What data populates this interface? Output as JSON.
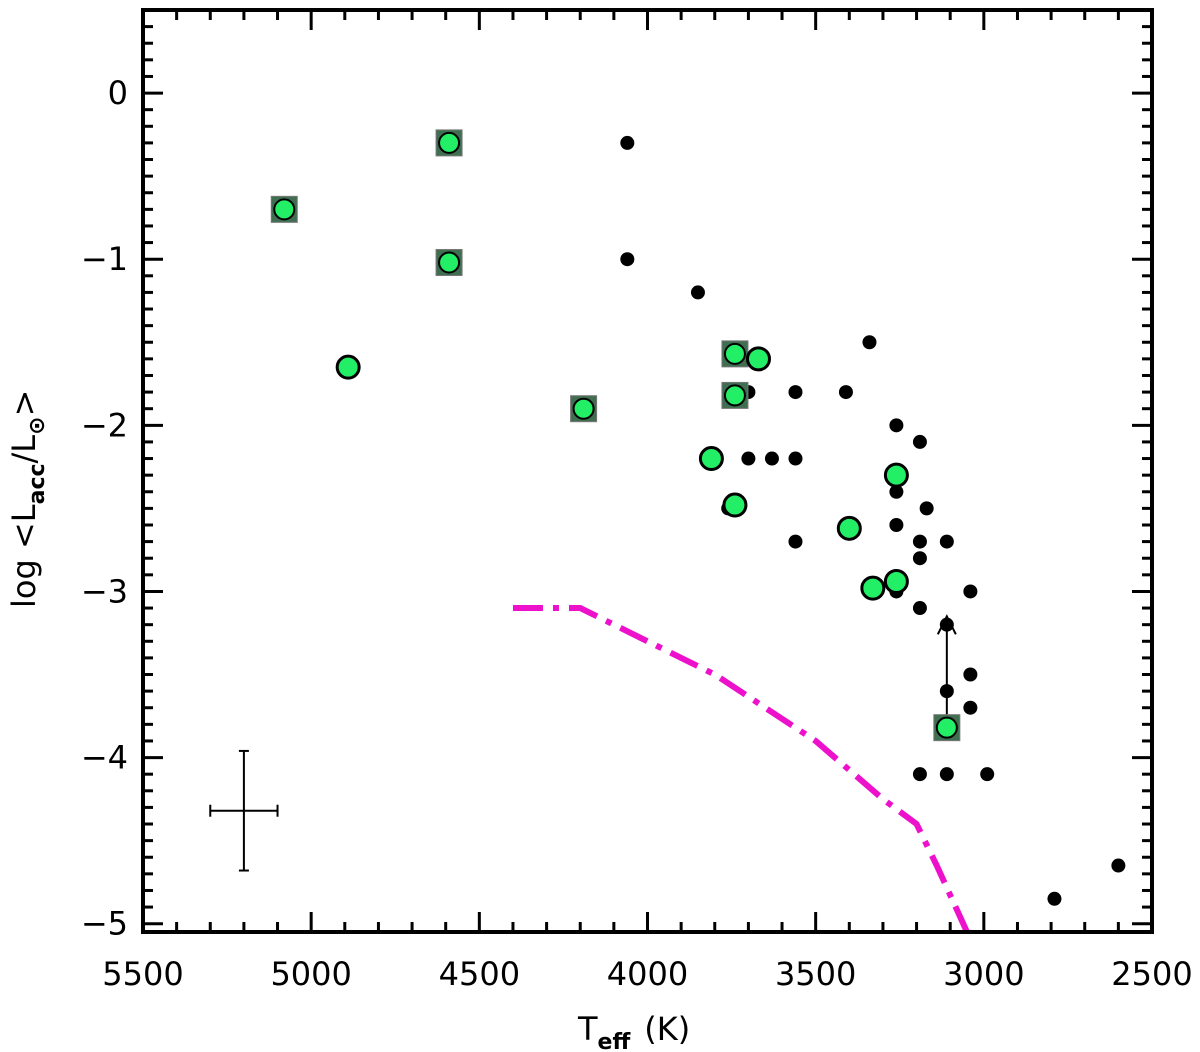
{
  "chart_data": {
    "type": "scatter",
    "title": "",
    "xlabel": "T",
    "xlabel_sub": "eff",
    "xlabel_unit": "(K)",
    "ylabel": "log <L",
    "ylabel_sub_acc": "acc",
    "ylabel_mid": "/L",
    "ylabel_sub_sun": "⊙",
    "ylabel_end": ">",
    "xlim": [
      5500,
      2500
    ],
    "ylim": [
      -5.05,
      0.5
    ],
    "x_reversed": true,
    "x_ticks": [
      5500,
      5000,
      4500,
      4000,
      3500,
      3000,
      2500
    ],
    "y_ticks": [
      0,
      -1,
      -2,
      -3,
      -4,
      -5
    ],
    "y_tick_labels": [
      "0",
      "−1",
      "−2",
      "−3",
      "−4",
      "−5"
    ],
    "grid": false,
    "colors": {
      "green": "#22ee66",
      "magenta": "#ee11cc",
      "square": "#3f6f50",
      "black": "#000000"
    },
    "series": [
      {
        "marker": "small-black-dot",
        "points": [
          [
            4060,
            -0.3
          ],
          [
            4060,
            -1.0
          ],
          [
            3850,
            -1.2
          ],
          [
            3340,
            -1.5
          ],
          [
            3700,
            -1.8
          ],
          [
            3560,
            -1.8
          ],
          [
            3410,
            -1.8
          ],
          [
            3260,
            -2.0
          ],
          [
            3190,
            -2.1
          ],
          [
            3700,
            -2.2
          ],
          [
            3630,
            -2.2
          ],
          [
            3560,
            -2.2
          ],
          [
            3260,
            -2.4
          ],
          [
            3170,
            -2.5
          ],
          [
            3760,
            -2.5
          ],
          [
            3260,
            -2.6
          ],
          [
            3560,
            -2.7
          ],
          [
            3190,
            -2.7
          ],
          [
            3110,
            -2.7
          ],
          [
            3190,
            -2.8
          ],
          [
            3260,
            -3.0
          ],
          [
            3040,
            -3.0
          ],
          [
            3190,
            -3.1
          ],
          [
            3110,
            -3.2
          ],
          [
            3040,
            -3.5
          ],
          [
            3110,
            -3.6
          ],
          [
            3040,
            -3.7
          ],
          [
            3190,
            -4.1
          ],
          [
            3110,
            -4.1
          ],
          [
            2990,
            -4.1
          ],
          [
            2600,
            -4.65
          ],
          [
            2790,
            -4.85
          ]
        ]
      },
      {
        "marker": "green-circle",
        "points": [
          [
            4890,
            -1.65
          ],
          [
            3670,
            -1.6
          ],
          [
            3810,
            -2.2
          ],
          [
            3740,
            -2.48
          ],
          [
            3400,
            -2.62
          ],
          [
            3330,
            -2.98
          ],
          [
            3260,
            -2.94
          ],
          [
            3260,
            -2.3
          ]
        ]
      },
      {
        "marker": "green-circle-in-square",
        "points": [
          [
            5080,
            -0.7
          ],
          [
            4590,
            -0.3
          ],
          [
            4590,
            -1.02
          ],
          [
            4190,
            -1.9
          ],
          [
            3740,
            -1.57
          ],
          [
            3740,
            -1.82
          ],
          [
            3110,
            -3.82
          ]
        ]
      }
    ],
    "reference_curve": {
      "style": "dash-dot",
      "points": [
        [
          4400,
          -3.1
        ],
        [
          4200,
          -3.1
        ],
        [
          3800,
          -3.5
        ],
        [
          3500,
          -3.9
        ],
        [
          3300,
          -4.25
        ],
        [
          3200,
          -4.4
        ],
        [
          3140,
          -4.65
        ],
        [
          3050,
          -5.05
        ]
      ]
    },
    "limit_arrow": {
      "x": 3110,
      "from": -3.82,
      "to": -3.15
    },
    "error_bar": {
      "x": 5200,
      "y": -4.32,
      "xerr": 100,
      "yerr": 0.36
    }
  }
}
